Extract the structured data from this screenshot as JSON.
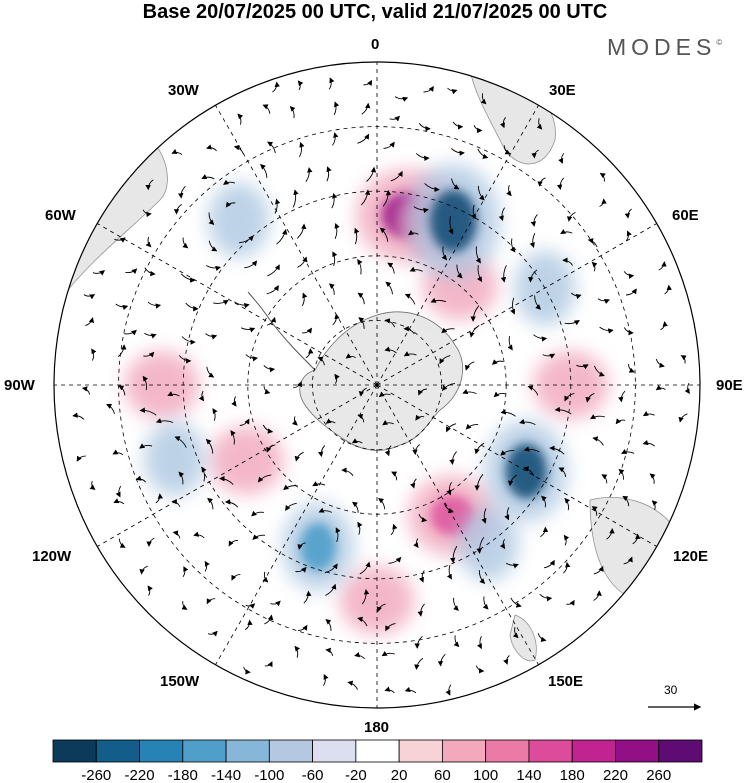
{
  "title": "Base 20/07/2025 00 UTC, valid 21/07/2025 00 UTC",
  "brand": {
    "name": "MODES",
    "mark": "©"
  },
  "longitude_labels": {
    "lon_0": "0",
    "lon_30e": "30E",
    "lon_60e": "60E",
    "lon_90e": "90E",
    "lon_120e": "120E",
    "lon_150e": "150E",
    "lon_180": "180",
    "lon_150w": "150W",
    "lon_120w": "120W",
    "lon_90w": "90W",
    "lon_60w": "60W",
    "lon_30w": "30W"
  },
  "reference_vector": {
    "value": "30"
  },
  "colorbar": {
    "ticks": [
      "-260",
      "-220",
      "-180",
      "-140",
      "-100",
      "-60",
      "-20",
      "20",
      "60",
      "100",
      "140",
      "180",
      "220",
      "260"
    ],
    "colors": [
      "#0b3a5a",
      "#135d8a",
      "#2782b5",
      "#4f9fca",
      "#86b6d8",
      "#b5c8e2",
      "#dcdff0",
      "#ffffff",
      "#f7d3d8",
      "#f3a9bb",
      "#ec7aa6",
      "#dd4c9a",
      "#c12391",
      "#920f86",
      "#5e0b73"
    ]
  },
  "features": {
    "positive_anomalies": [
      {
        "lon": 10,
        "lat": -50,
        "intensity": 3
      },
      {
        "lon": 40,
        "lat": -60,
        "intensity": 1
      },
      {
        "lon": 20,
        "lat": -50,
        "intensity": 1
      },
      {
        "lon": 90,
        "lat": -45,
        "intensity": 1
      },
      {
        "lon": 150,
        "lat": -55,
        "intensity": 2
      },
      {
        "lon": 180,
        "lat": -40,
        "intensity": 1
      },
      {
        "lon": -120,
        "lat": -55,
        "intensity": 1
      },
      {
        "lon": -90,
        "lat": -40,
        "intensity": 1
      }
    ],
    "negative_anomalies": [
      {
        "lon": 25,
        "lat": -48,
        "intensity": 4
      },
      {
        "lon": 60,
        "lat": -45,
        "intensity": 1
      },
      {
        "lon": 120,
        "lat": -50,
        "intensity": 3
      },
      {
        "lon": -160,
        "lat": -50,
        "intensity": 2
      },
      {
        "lon": 145,
        "lat": -45,
        "intensity": 1
      },
      {
        "lon": -40,
        "lat": -40,
        "intensity": 1
      },
      {
        "lon": -110,
        "lat": -40,
        "intensity": 1
      }
    ],
    "colors": {
      "positive": "#f0a0b8",
      "positive_core": "#9c1a8a",
      "negative": "#a9c4e0",
      "negative_core": "#134f78",
      "land": "#e8e8e8",
      "coast": "#666666"
    }
  }
}
